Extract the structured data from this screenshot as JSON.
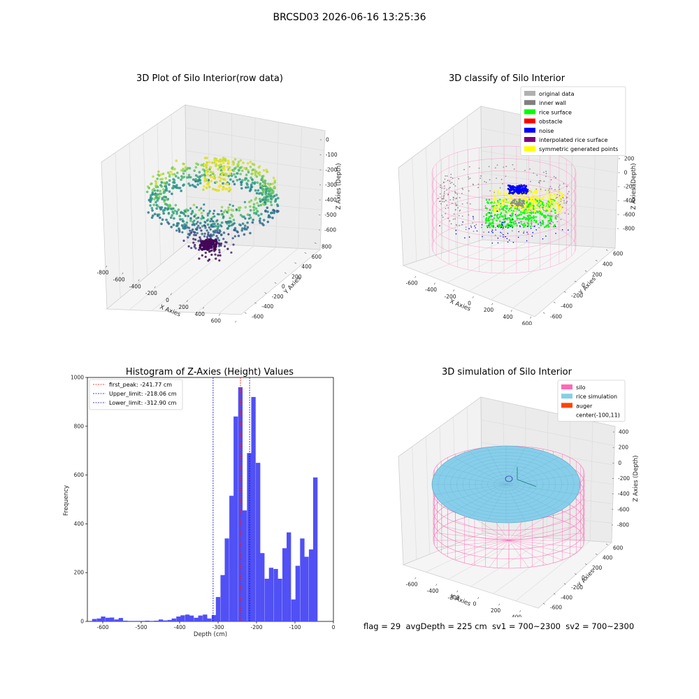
{
  "figure": {
    "suptitle": "BRCSD03 2026-06-16 13:25:36",
    "status_line": "flag = 29  avgDepth = 225 cm  sv1 = 700~2300  sv2 = 700~2300"
  },
  "colors": {
    "hist_bar": "#5050f5",
    "first_peak": "#ff0000",
    "limit_lines": "#0000cc",
    "silo_wire": "#ff69b4",
    "rice_sim": "#87ceeb",
    "auger": "#ff4500"
  },
  "chart_data": [
    {
      "type": "scatter",
      "dimensions": 3,
      "title": "3D Plot of Silo Interior(row data)",
      "xlabel": "X Axies",
      "ylabel": "Y Axies",
      "zlabel": "Z Axies (Depth)",
      "xticks": [
        "-800",
        "-600",
        "-400",
        "-200",
        "0",
        "200",
        "400",
        "600",
        "800"
      ],
      "yticks": [
        "-600",
        "-400",
        "-200",
        "0",
        "200",
        "400",
        "600",
        "800"
      ],
      "zticks": [
        "0",
        "-100",
        "-200",
        "-300",
        "-400",
        "-500",
        "-600"
      ],
      "xlim": [
        -800,
        800
      ],
      "ylim": [
        -600,
        800
      ],
      "zlim": [
        -650,
        0
      ],
      "colormap": "viridis"
    },
    {
      "type": "scatter",
      "dimensions": 3,
      "title": "3D classify of Silo Interior",
      "xlabel": "X Axies",
      "ylabel": "Y Axies",
      "zlabel": "Z Axies (Depth)",
      "xticks": [
        "-600",
        "-400",
        "-200",
        "0",
        "200",
        "400",
        "600"
      ],
      "yticks": [
        "-600",
        "-400",
        "-200",
        "0",
        "200",
        "400",
        "600"
      ],
      "zticks": [
        "200",
        "0",
        "-200",
        "-400",
        "-600",
        "-800"
      ],
      "legend_position": "top-right",
      "legend": [
        {
          "label": "original data",
          "color": "#b0b0b0"
        },
        {
          "label": "inner wall",
          "color": "#808080"
        },
        {
          "label": "rice surface",
          "color": "#00ff00"
        },
        {
          "label": "obstacle",
          "color": "#ff0000"
        },
        {
          "label": "noise",
          "color": "#0000ff"
        },
        {
          "label": "interpolated rice surface",
          "color": "#800080"
        },
        {
          "label": "symmetric generated points",
          "color": "#ffff00"
        }
      ]
    },
    {
      "type": "bar",
      "title": "Histogram of Z-Axies (Height) Values",
      "xlabel": "Depth (cm)",
      "ylabel": "Frequency",
      "xlim": [
        -640,
        0
      ],
      "ylim": [
        0,
        1000
      ],
      "xticks": [
        -600,
        -500,
        -400,
        -300,
        -200,
        -100,
        0
      ],
      "yticks": [
        0,
        200,
        400,
        600,
        800,
        1000
      ],
      "bin_width": 11.5,
      "bins": [
        {
          "x": -622,
          "y": 10
        },
        {
          "x": -610,
          "y": 12
        },
        {
          "x": -599,
          "y": 20
        },
        {
          "x": -587,
          "y": 15
        },
        {
          "x": -576,
          "y": 16
        },
        {
          "x": -564,
          "y": 8
        },
        {
          "x": -553,
          "y": 14
        },
        {
          "x": -541,
          "y": 3
        },
        {
          "x": -530,
          "y": 2
        },
        {
          "x": -518,
          "y": 2
        },
        {
          "x": -507,
          "y": 2
        },
        {
          "x": -495,
          "y": 2
        },
        {
          "x": -484,
          "y": 3
        },
        {
          "x": -472,
          "y": 2
        },
        {
          "x": -461,
          "y": 3
        },
        {
          "x": -449,
          "y": 8
        },
        {
          "x": -438,
          "y": 4
        },
        {
          "x": -426,
          "y": 6
        },
        {
          "x": -415,
          "y": 12
        },
        {
          "x": -403,
          "y": 20
        },
        {
          "x": -392,
          "y": 25
        },
        {
          "x": -380,
          "y": 28
        },
        {
          "x": -369,
          "y": 24
        },
        {
          "x": -357,
          "y": 15
        },
        {
          "x": -346,
          "y": 24
        },
        {
          "x": -334,
          "y": 28
        },
        {
          "x": -323,
          "y": 12
        },
        {
          "x": -311,
          "y": 26
        },
        {
          "x": -300,
          "y": 100
        },
        {
          "x": -288,
          "y": 190
        },
        {
          "x": -277,
          "y": 340
        },
        {
          "x": -265,
          "y": 515
        },
        {
          "x": -254,
          "y": 840
        },
        {
          "x": -242,
          "y": 960
        },
        {
          "x": -231,
          "y": 455
        },
        {
          "x": -219,
          "y": 690
        },
        {
          "x": -208,
          "y": 920
        },
        {
          "x": -196,
          "y": 650
        },
        {
          "x": -185,
          "y": 280
        },
        {
          "x": -173,
          "y": 175
        },
        {
          "x": -162,
          "y": 220
        },
        {
          "x": -150,
          "y": 215
        },
        {
          "x": -139,
          "y": 175
        },
        {
          "x": -127,
          "y": 300
        },
        {
          "x": -116,
          "y": 365
        },
        {
          "x": -104,
          "y": 90
        },
        {
          "x": -93,
          "y": 228
        },
        {
          "x": -81,
          "y": 340
        },
        {
          "x": -70,
          "y": 265
        },
        {
          "x": -58,
          "y": 295
        },
        {
          "x": -47,
          "y": 590
        }
      ],
      "vlines": [
        {
          "label": "first_peak: -241.77 cm",
          "x": -241.77,
          "color": "#ff0000"
        },
        {
          "label": "Upper_limit: -218.06 cm",
          "x": -218.06,
          "color": "#0000cc"
        },
        {
          "label": "Lower_limit: -312.90 cm",
          "x": -312.9,
          "color": "#0000cc"
        }
      ],
      "legend_position": "top-left"
    },
    {
      "type": "area",
      "dimensions": 3,
      "title": "3D simulation of Silo Interior",
      "xlabel": "X Axies",
      "ylabel": "Y Axies",
      "zlabel": "Z Axies (Depth)",
      "xticks": [
        "-600",
        "-400",
        "-200",
        "0",
        "200",
        "400"
      ],
      "yticks": [
        "-600",
        "-400",
        "-200",
        "0",
        "200",
        "400",
        "600"
      ],
      "zticks": [
        "400",
        "200",
        "0",
        "-200",
        "-400",
        "-600",
        "-800"
      ],
      "legend_position": "top-right",
      "legend": [
        {
          "label": "silo",
          "color": "#ff69b4"
        },
        {
          "label": "rice simulation",
          "color": "#87ceeb"
        },
        {
          "label": "auger",
          "color": "#ff4500"
        },
        {
          "label": "center(-100,11)",
          "color": "none"
        }
      ]
    }
  ]
}
